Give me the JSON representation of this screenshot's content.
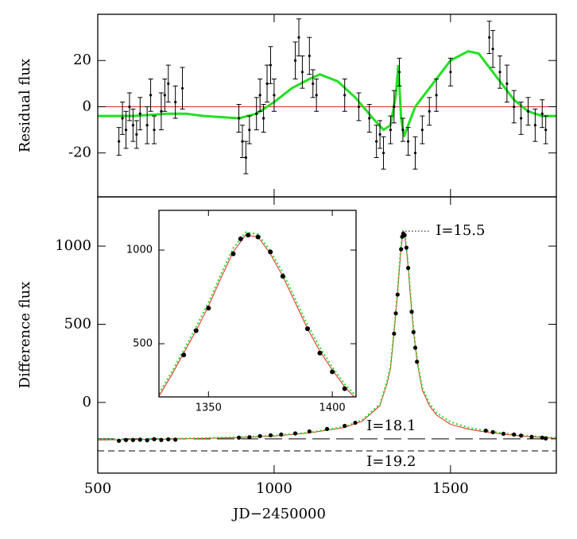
{
  "chart_data": [
    {
      "type": "errorbar",
      "y_label": "Residual flux",
      "xlim": [
        500,
        1800
      ],
      "ylim": [
        -39,
        40
      ],
      "yticks": [
        -20,
        0,
        20
      ],
      "points": {
        "color": "#000000",
        "x": [
          560,
          570,
          580,
          590,
          600,
          610,
          620,
          640,
          650,
          660,
          680,
          690,
          700,
          720,
          740,
          900,
          910,
          920,
          930,
          950,
          960,
          970,
          980,
          990,
          1000,
          1060,
          1070,
          1080,
          1100,
          1110,
          1120,
          1200,
          1240,
          1270,
          1290,
          1300,
          1310,
          1330,
          1340,
          1355,
          1365,
          1380,
          1400,
          1420,
          1440,
          1460,
          1500,
          1610,
          1620,
          1640,
          1660,
          1680,
          1700,
          1720,
          1740,
          1760,
          1770
        ],
        "values": [
          -15,
          -5,
          -10,
          0,
          -8,
          -12,
          -3,
          -8,
          5,
          -10,
          -2,
          5,
          10,
          2,
          8,
          -5,
          -15,
          -22,
          -10,
          -3,
          5,
          -5,
          10,
          18,
          5,
          20,
          30,
          15,
          22,
          10,
          5,
          5,
          0,
          -5,
          -15,
          -12,
          -20,
          -10,
          0,
          15,
          -10,
          -15,
          -20,
          -10,
          -2,
          5,
          15,
          30,
          25,
          15,
          10,
          0,
          -5,
          -2,
          -8,
          -3,
          -10
        ],
        "errors": [
          6,
          7,
          8,
          6,
          7,
          6,
          7,
          8,
          7,
          6,
          8,
          7,
          8,
          7,
          9,
          6,
          7,
          7,
          6,
          7,
          7,
          6,
          8,
          8,
          7,
          8,
          8,
          7,
          8,
          6,
          7,
          7,
          6,
          6,
          7,
          6,
          7,
          6,
          7,
          6,
          5,
          6,
          7,
          6,
          6,
          7,
          6,
          7,
          8,
          7,
          8,
          7,
          7,
          6,
          7,
          6,
          6
        ]
      },
      "series": [
        {
          "color": "#e8281e",
          "style": "solid",
          "width": 1,
          "x": [
            500,
            1800
          ],
          "values": [
            0,
            0
          ]
        },
        {
          "color": "#22e022",
          "style": "solid",
          "width": 3,
          "x": [
            500,
            600,
            700,
            750,
            800,
            900,
            950,
            1000,
            1050,
            1100,
            1130,
            1180,
            1230,
            1280,
            1310,
            1330,
            1345,
            1352,
            1360,
            1368,
            1380,
            1400,
            1450,
            1500,
            1550,
            1580,
            1620,
            1680,
            1720,
            1760,
            1800
          ],
          "values": [
            -4,
            -4,
            -3,
            -3,
            -4,
            -5,
            -3,
            2,
            8,
            12,
            14,
            11,
            4,
            -5,
            -10,
            -8,
            5,
            18,
            -5,
            -13,
            -8,
            0,
            10,
            20,
            24,
            23,
            15,
            3,
            -2,
            -4,
            -4
          ]
        }
      ]
    },
    {
      "type": "scatter",
      "x_label": "JD−2450000",
      "y_label": "Difference flux",
      "xlim": [
        500,
        1800
      ],
      "ylim": [
        -452,
        1315
      ],
      "xticks": [
        500,
        1000,
        1500
      ],
      "yticks": [
        0,
        500,
        1000
      ],
      "points": {
        "color": "#000000",
        "x": [
          560,
          580,
          600,
          620,
          640,
          660,
          680,
          700,
          720,
          900,
          930,
          960,
          990,
          1020,
          1060,
          1100,
          1150,
          1200,
          1230,
          1340,
          1345,
          1350,
          1360,
          1363,
          1366,
          1370,
          1375,
          1380,
          1390,
          1395,
          1400,
          1405,
          1600,
          1620,
          1650,
          1680,
          1700,
          1730,
          1760,
          1770
        ],
        "values": [
          -245,
          -240,
          -240,
          -238,
          -242,
          -235,
          -240,
          -236,
          -238,
          -225,
          -222,
          -215,
          -210,
          -205,
          -198,
          -185,
          -170,
          -150,
          -130,
          440,
          570,
          690,
          980,
          1060,
          1080,
          1070,
          990,
          860,
          580,
          450,
          350,
          260,
          -180,
          -190,
          -200,
          -205,
          -212,
          -220,
          -225,
          -230
        ]
      },
      "series": [
        {
          "color": "#e8281e",
          "style": "solid",
          "width": 1,
          "x": [
            500,
            700,
            900,
            1000,
            1100,
            1200,
            1250,
            1300,
            1320,
            1330,
            1335,
            1340,
            1345,
            1350,
            1355,
            1360,
            1365,
            1370,
            1375,
            1380,
            1385,
            1390,
            1395,
            1400,
            1405,
            1410,
            1420,
            1440,
            1460,
            1500,
            1550,
            1600,
            1700,
            1800
          ],
          "values": [
            -240,
            -235,
            -225,
            -215,
            -195,
            -160,
            -120,
            -20,
            120,
            220,
            330,
            450,
            570,
            700,
            850,
            990,
            1080,
            1070,
            980,
            860,
            720,
            580,
            460,
            360,
            270,
            200,
            80,
            -20,
            -80,
            -140,
            -170,
            -190,
            -215,
            -230
          ]
        },
        {
          "color": "#22e022",
          "style": "dotted",
          "width": 2,
          "x": [
            500,
            700,
            900,
            1000,
            1100,
            1200,
            1250,
            1300,
            1320,
            1330,
            1335,
            1340,
            1345,
            1350,
            1355,
            1360,
            1365,
            1370,
            1375,
            1380,
            1385,
            1390,
            1395,
            1400,
            1405,
            1410,
            1420,
            1440,
            1460,
            1500,
            1550,
            1600,
            1700,
            1800
          ],
          "values": [
            -238,
            -233,
            -222,
            -212,
            -192,
            -155,
            -112,
            -10,
            135,
            235,
            345,
            465,
            590,
            720,
            870,
            1010,
            1095,
            1085,
            995,
            880,
            740,
            600,
            480,
            375,
            285,
            215,
            95,
            -5,
            -65,
            -125,
            -160,
            -182,
            -210,
            -226
          ]
        }
      ],
      "levels": [
        {
          "label": "I=18.1",
          "value": -233,
          "style": "long-dash"
        },
        {
          "label": "I=19.2",
          "value": -310,
          "style": "dash"
        }
      ],
      "annotation": {
        "label": "I=15.5",
        "value": 1096,
        "x": [
          1372,
          1440
        ]
      }
    },
    {
      "type": "scatter",
      "xlim": [
        1330,
        1409.6
      ],
      "ylim": [
        216,
        1212
      ],
      "xticks": [
        1350,
        1400
      ],
      "yticks": [
        500,
        1000
      ],
      "points": {
        "color": "#000000",
        "x": [
          1340,
          1345,
          1350,
          1360,
          1363,
          1366,
          1370,
          1375,
          1380,
          1390,
          1395,
          1400,
          1405
        ],
        "values": [
          440,
          570,
          690,
          980,
          1060,
          1080,
          1070,
          990,
          860,
          580,
          450,
          350,
          260
        ]
      },
      "series": [
        {
          "color": "#e8281e",
          "style": "solid",
          "width": 1,
          "x": [
            1330,
            1335,
            1340,
            1345,
            1350,
            1355,
            1360,
            1365,
            1370,
            1375,
            1380,
            1385,
            1390,
            1395,
            1400,
            1405,
            1410
          ],
          "values": [
            220,
            330,
            450,
            570,
            700,
            850,
            990,
            1080,
            1070,
            980,
            860,
            720,
            580,
            460,
            360,
            270,
            200
          ]
        },
        {
          "color": "#22e022",
          "style": "dotted",
          "width": 2,
          "x": [
            1330,
            1335,
            1340,
            1345,
            1350,
            1355,
            1360,
            1365,
            1370,
            1375,
            1380,
            1385,
            1390,
            1395,
            1400,
            1405,
            1410
          ],
          "values": [
            235,
            345,
            465,
            590,
            720,
            870,
            1010,
            1095,
            1085,
            995,
            880,
            740,
            600,
            480,
            375,
            285,
            215
          ]
        }
      ]
    }
  ]
}
